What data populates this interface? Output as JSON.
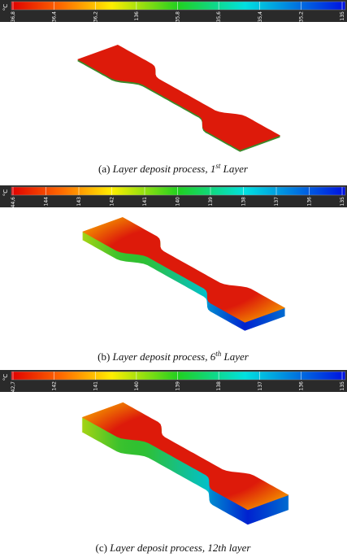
{
  "panels": [
    {
      "unit": "°C",
      "ticks": [
        "136,8",
        "136,4",
        "136,2",
        "136",
        "135,8",
        "135,6",
        "135,4",
        "135,2",
        "135"
      ],
      "caption": {
        "label": "(a)",
        "text": "Layer deposit process, 1",
        "sup": "st",
        "rest": " Layer"
      }
    },
    {
      "unit": "°C",
      "ticks": [
        "144,6",
        "144",
        "143",
        "142",
        "141",
        "140",
        "139",
        "138",
        "137",
        "136",
        "135"
      ],
      "caption": {
        "label": "(b)",
        "text": "Layer deposit process, 6",
        "sup": "th",
        "rest": " Layer"
      }
    },
    {
      "unit": "°C",
      "ticks": [
        "142,7",
        "142",
        "141",
        "140",
        "139",
        "138",
        "137",
        "136",
        "135"
      ],
      "caption": {
        "label": "(c)",
        "text": "Layer deposit process, 12th layer"
      }
    }
  ]
}
